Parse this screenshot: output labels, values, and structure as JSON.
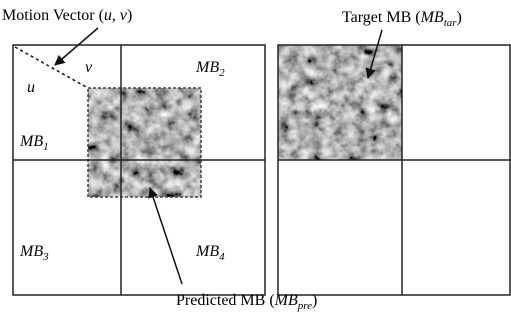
{
  "motion_vector": {
    "prefix": "Motion Vector (",
    "u": "u",
    "sep": ", ",
    "v": "v",
    "suffix": ")"
  },
  "vector_labels": {
    "u": "u",
    "v": "v"
  },
  "blocks": [
    {
      "base": "MB",
      "sub": "1"
    },
    {
      "base": "MB",
      "sub": "2"
    },
    {
      "base": "MB",
      "sub": "3"
    },
    {
      "base": "MB",
      "sub": "4"
    }
  ],
  "target": {
    "prefix": "Target MB (",
    "base": "MB",
    "sub": "tar",
    "suffix": ")"
  },
  "predicted": {
    "prefix": "Predicted MB (",
    "base": "MB",
    "sub": "pre",
    "suffix": ")"
  }
}
